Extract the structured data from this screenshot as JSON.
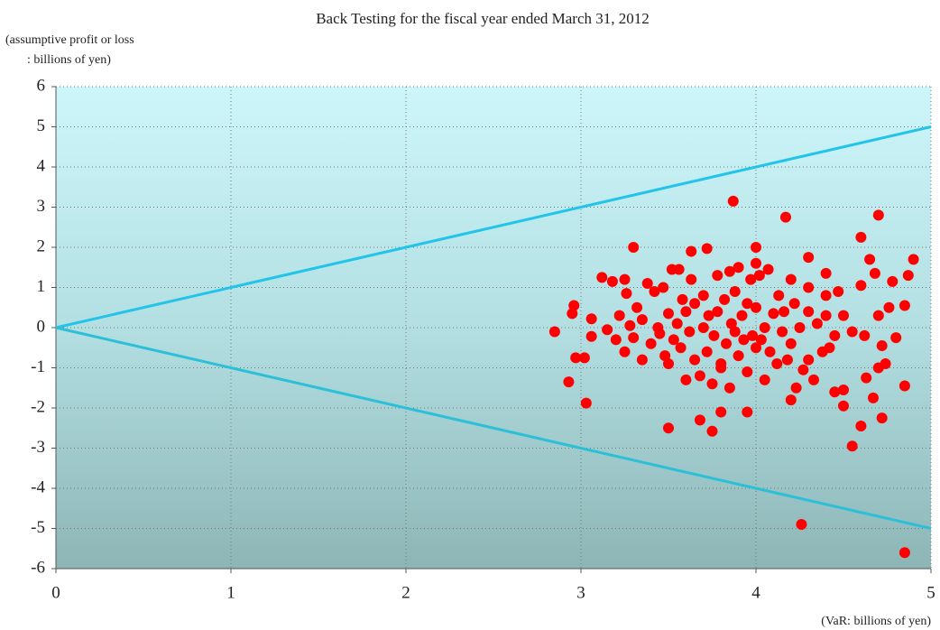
{
  "chart_data": {
    "type": "scatter",
    "title": "Back Testing for the fiscal year ended March 31, 2012",
    "y_label": [
      "(assumptive profit or loss",
      ": billions of yen)"
    ],
    "x_label": "(VaR: billions of yen)",
    "xlim": [
      0,
      5
    ],
    "xticks": [
      0,
      1,
      2,
      3,
      4,
      5
    ],
    "ylim": [
      -6,
      6
    ],
    "yticks": [
      -6,
      -5,
      -4,
      -3,
      -2,
      -1,
      0,
      1,
      2,
      3,
      4,
      5,
      6
    ],
    "grid": true,
    "color": "#ff0000",
    "x": [
      2.85,
      2.93,
      2.95,
      2.96,
      2.97,
      3.02,
      3.03,
      3.06,
      3.06,
      3.12,
      3.18,
      3.25,
      3.26,
      3.3,
      3.5,
      3.63,
      3.72,
      3.68,
      3.75,
      3.8,
      3.87,
      3.95,
      4.17,
      4.26,
      4.55,
      4.7,
      4.6,
      4.85,
      4.9,
      4.87,
      4.85,
      4.85,
      4.8,
      4.72,
      4.67,
      4.6,
      4.5,
      4.5,
      4.45,
      4.4,
      4.4,
      4.3,
      4.3,
      4.2,
      4.0,
      4.0,
      3.15,
      3.2,
      3.22,
      3.25,
      3.28,
      3.3,
      3.32,
      3.35,
      3.35,
      3.38,
      3.4,
      3.42,
      3.44,
      3.45,
      3.47,
      3.48,
      3.5,
      3.5,
      3.52,
      3.53,
      3.55,
      3.56,
      3.57,
      3.58,
      3.6,
      3.6,
      3.62,
      3.63,
      3.65,
      3.65,
      3.68,
      3.7,
      3.7,
      3.72,
      3.73,
      3.75,
      3.76,
      3.78,
      3.78,
      3.8,
      3.8,
      3.82,
      3.83,
      3.85,
      3.85,
      3.86,
      3.88,
      3.88,
      3.9,
      3.9,
      3.92,
      3.93,
      3.95,
      3.95,
      3.97,
      3.98,
      4.0,
      4.0,
      4.02,
      4.03,
      4.05,
      4.05,
      4.07,
      4.08,
      4.1,
      4.12,
      4.13,
      4.15,
      4.16,
      4.18,
      4.2,
      4.2,
      4.22,
      4.23,
      4.25,
      4.27,
      4.3,
      4.3,
      4.33,
      4.35,
      4.38,
      4.4,
      4.42,
      4.45,
      4.47,
      4.5,
      4.55,
      4.6,
      4.62,
      4.63,
      4.65,
      4.68,
      4.7,
      4.72,
      4.74,
      4.76,
      4.78,
      4.7
    ],
    "values": [
      -0.1,
      -1.35,
      0.35,
      0.55,
      -0.75,
      -0.75,
      -1.88,
      0.22,
      -0.22,
      1.25,
      1.15,
      1.2,
      0.85,
      2.0,
      -2.5,
      1.9,
      1.97,
      -2.3,
      -2.58,
      -2.1,
      3.15,
      -2.1,
      2.75,
      -4.9,
      -2.95,
      2.8,
      2.25,
      -5.6,
      1.7,
      1.3,
      0.55,
      -1.45,
      -0.25,
      -2.25,
      -1.75,
      -2.45,
      -1.55,
      -1.95,
      -1.6,
      0.3,
      1.35,
      1.0,
      1.75,
      -1.8,
      2.0,
      1.6,
      -0.05,
      -0.3,
      0.3,
      -0.6,
      0.05,
      -0.25,
      0.5,
      -0.8,
      0.2,
      1.1,
      -0.4,
      0.9,
      0.0,
      -0.15,
      1.0,
      -0.7,
      0.35,
      -0.9,
      1.45,
      -0.3,
      0.1,
      1.45,
      -0.5,
      0.7,
      -1.3,
      0.4,
      -0.1,
      1.2,
      -0.8,
      0.6,
      -1.2,
      0.0,
      0.8,
      -0.6,
      0.3,
      -1.4,
      -0.2,
      1.3,
      0.4,
      -0.9,
      -1.0,
      0.7,
      -0.4,
      1.4,
      -1.5,
      0.1,
      -0.1,
      0.9,
      -0.7,
      1.5,
      0.3,
      -0.3,
      0.6,
      -1.1,
      1.2,
      -0.2,
      0.5,
      -0.5,
      1.3,
      -0.3,
      0.0,
      -1.3,
      1.45,
      -0.6,
      0.35,
      -0.9,
      0.8,
      -0.1,
      0.4,
      -0.8,
      1.2,
      -0.4,
      0.6,
      -1.5,
      0.0,
      -1.05,
      0.4,
      -0.8,
      -1.3,
      0.1,
      -0.6,
      0.8,
      -0.5,
      -0.2,
      0.9,
      0.3,
      -0.1,
      1.05,
      -0.2,
      -1.25,
      1.7,
      1.35,
      0.3,
      -0.45,
      -0.9,
      0.5,
      1.15,
      -1.0
    ],
    "lines": [
      {
        "color": "#22c4ea",
        "x": [
          0,
          5
        ],
        "values": [
          0,
          5
        ]
      },
      {
        "color": "#2bc0d8",
        "x": [
          0,
          5
        ],
        "values": [
          0,
          -5
        ]
      }
    ]
  }
}
